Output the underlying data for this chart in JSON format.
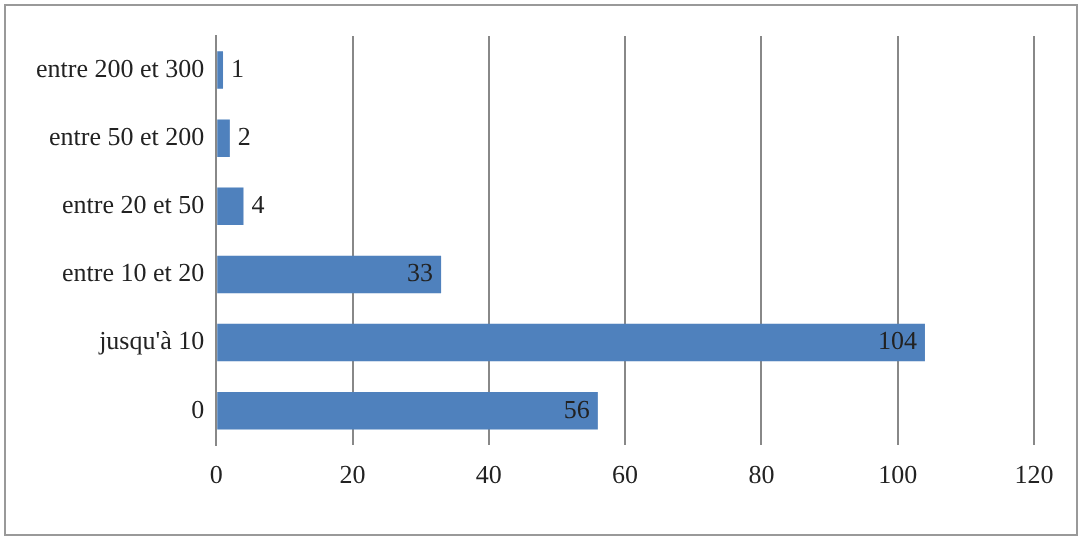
{
  "chart_data": {
    "type": "bar",
    "orientation": "horizontal",
    "categories": [
      "entre 200 et 300",
      "entre 50 et 200",
      "entre 20 et 50",
      "entre 10 et 20",
      "jusqu'à 10",
      "0"
    ],
    "values": [
      1,
      2,
      4,
      33,
      104,
      56
    ],
    "color": "#4f81bd",
    "xlim": [
      0,
      120
    ],
    "xticks": [
      0,
      20,
      40,
      60,
      80,
      100,
      120
    ],
    "grid": "x",
    "legend": false,
    "data_labels": true
  }
}
